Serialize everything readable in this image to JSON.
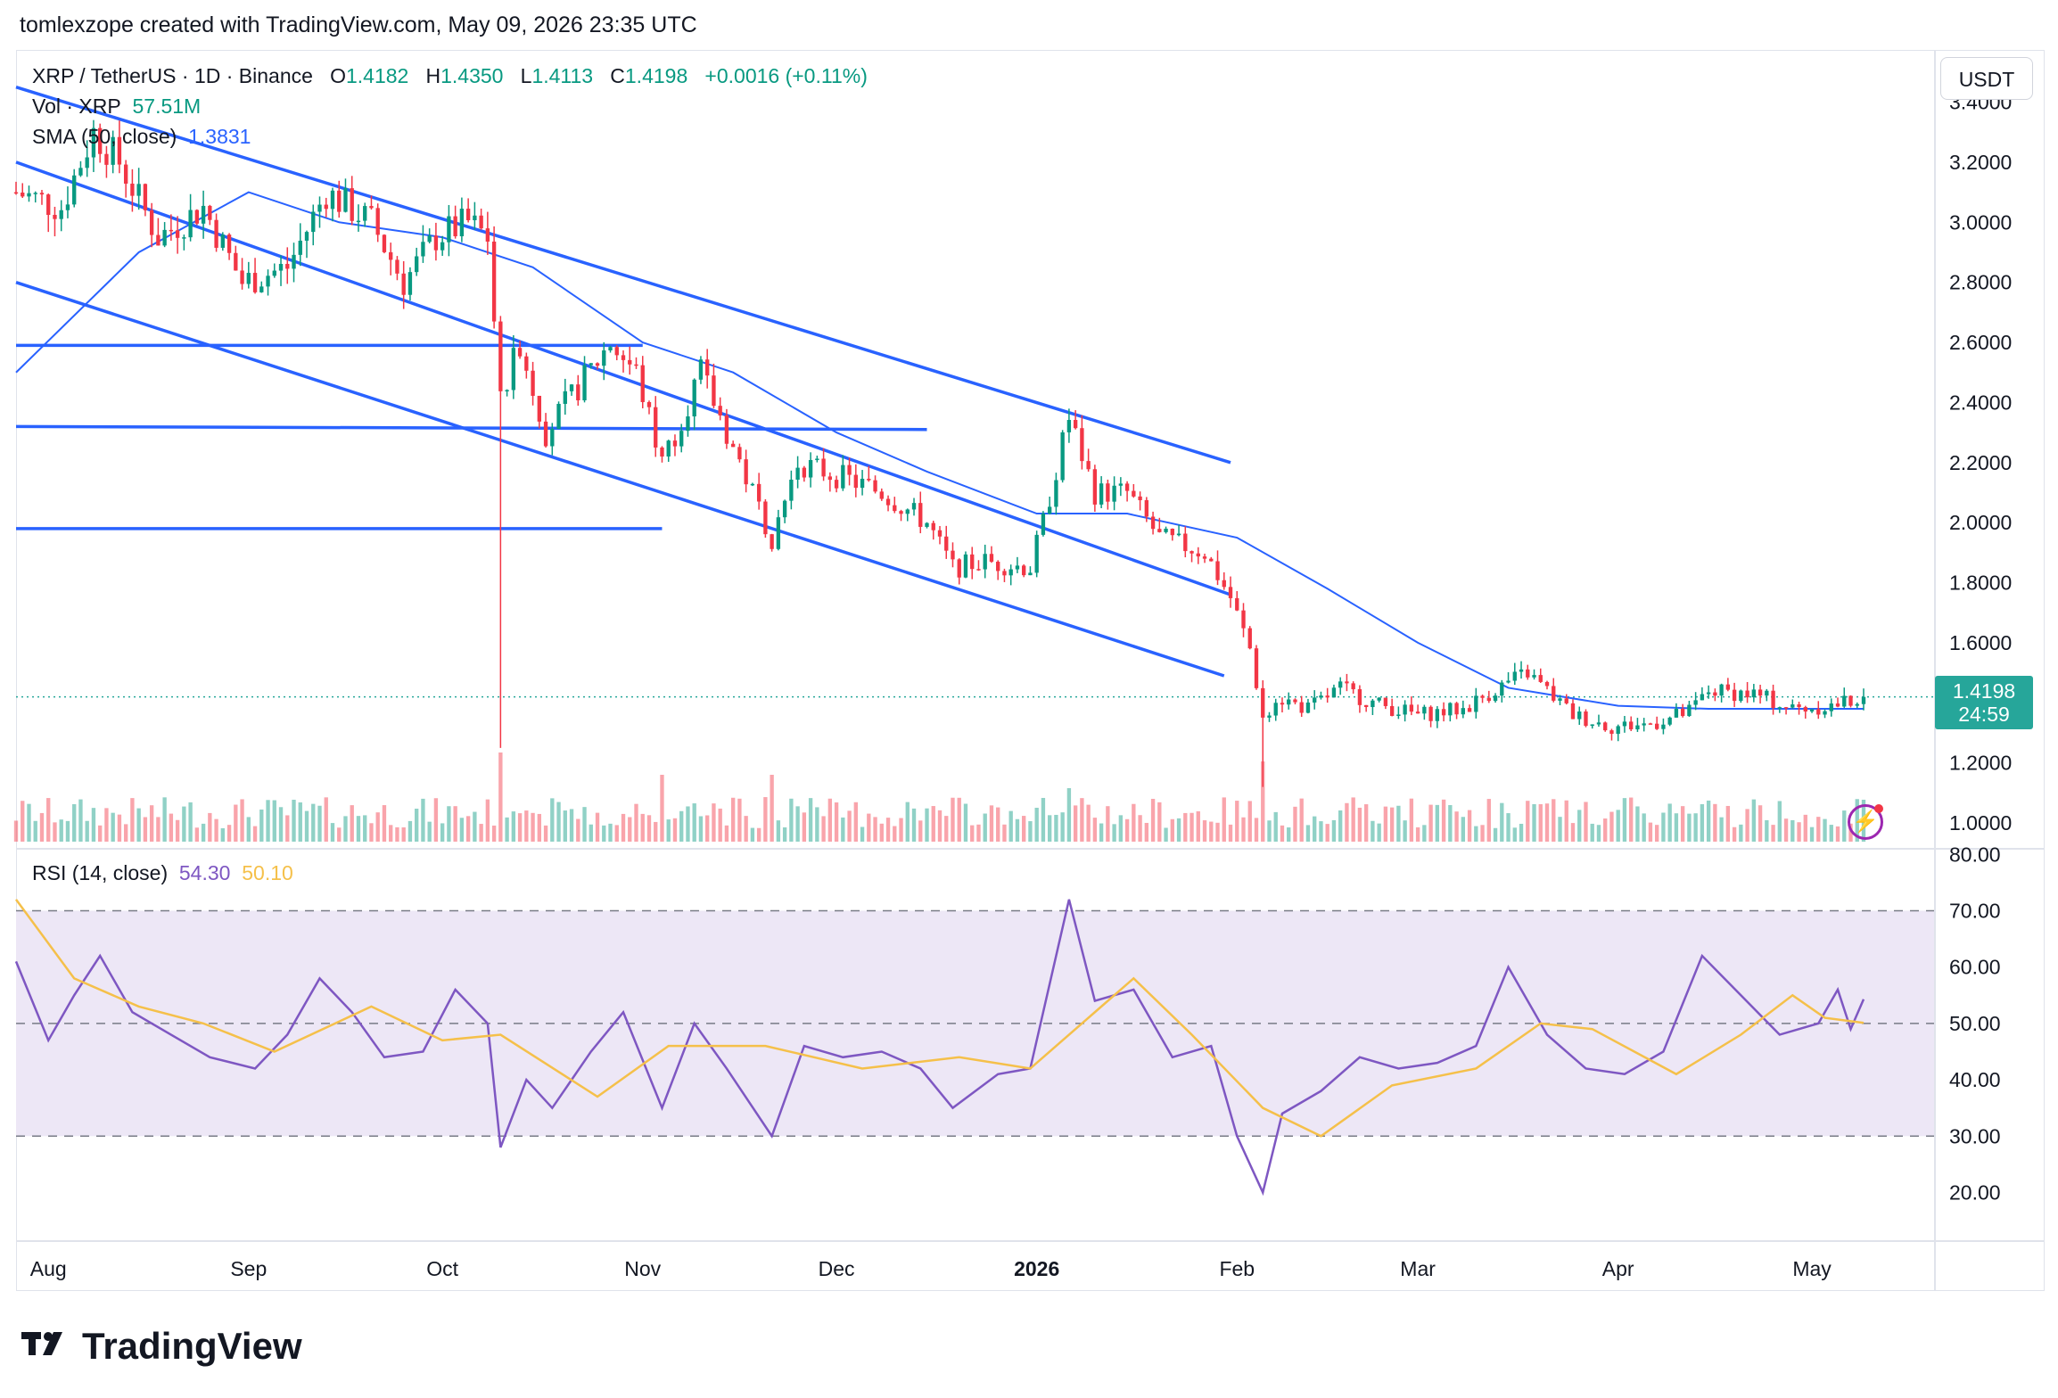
{
  "header": {
    "credit": "tomlexzope created with TradingView.com, May 09, 2026 23:35 UTC"
  },
  "legend": {
    "symbol": "XRP / TetherUS · 1D · Binance",
    "o_label": "O",
    "o_value": "1.4182",
    "h_label": "H",
    "h_value": "1.4350",
    "l_label": "L",
    "l_value": "1.4113",
    "c_label": "C",
    "c_value": "1.4198",
    "change": "+0.0016 (+0.11%)",
    "vol_label": "Vol · XRP",
    "vol_value": "57.51M",
    "sma_label": "SMA (50, close)",
    "sma_value": "1.3831",
    "rsi_label": "RSI (14, close)",
    "rsi_value": "54.30",
    "rsi_ma_value": "50.10"
  },
  "currency": "USDT",
  "last_price": {
    "price": "1.4198",
    "countdown": "24:59"
  },
  "footer": {
    "brand": "TradingView"
  },
  "colors": {
    "up": "#089981",
    "down": "#f23645",
    "sma": "#2962ff",
    "trendline": "#2962ff",
    "rsi": "#7e57c2",
    "rsi_ma": "#f5c04a",
    "rsi_band": "#ede7f6"
  },
  "icons": {
    "bolt": "lightning-icon"
  },
  "chart_data": [
    {
      "type": "candlestick",
      "title": "XRP / TetherUS · 1D · Binance",
      "y_ticks": [
        "3.4000",
        "3.2000",
        "3.0000",
        "2.8000",
        "2.6000",
        "2.4000",
        "2.2000",
        "2.0000",
        "1.8000",
        "1.6000",
        "1.4000",
        "1.2000",
        "1.0000"
      ],
      "ylim": [
        0.92,
        3.55
      ],
      "x_ticks": [
        "Aug",
        "Sep",
        "Oct",
        "Nov",
        "Dec",
        "2026",
        "Feb",
        "Mar",
        "Apr",
        "May"
      ],
      "x_start": "2025-07-27",
      "x_end": "2026-05-09",
      "grid": false,
      "close_anchors": [
        [
          "2025-07-27",
          3.1
        ],
        [
          "2025-08-03",
          3.05
        ],
        [
          "2025-08-08",
          3.3
        ],
        [
          "2025-08-12",
          3.2
        ],
        [
          "2025-08-18",
          2.95
        ],
        [
          "2025-08-25",
          3.05
        ],
        [
          "2025-08-31",
          2.8
        ],
        [
          "2025-09-07",
          2.85
        ],
        [
          "2025-09-13",
          3.1
        ],
        [
          "2025-09-20",
          3.0
        ],
        [
          "2025-09-25",
          2.8
        ],
        [
          "2025-09-30",
          2.95
        ],
        [
          "2025-10-05",
          3.0
        ],
        [
          "2025-10-08",
          2.95
        ],
        [
          "2025-10-10",
          2.4
        ],
        [
          "2025-10-13",
          2.6
        ],
        [
          "2025-10-17",
          2.3
        ],
        [
          "2025-10-22",
          2.45
        ],
        [
          "2025-10-27",
          2.6
        ],
        [
          "2025-10-31",
          2.5
        ],
        [
          "2025-11-04",
          2.2
        ],
        [
          "2025-11-07",
          2.35
        ],
        [
          "2025-11-10",
          2.5
        ],
        [
          "2025-11-14",
          2.3
        ],
        [
          "2025-11-21",
          1.95
        ],
        [
          "2025-11-25",
          2.2
        ],
        [
          "2025-12-02",
          2.15
        ],
        [
          "2025-12-08",
          2.1
        ],
        [
          "2025-12-15",
          2.0
        ],
        [
          "2025-12-19",
          1.85
        ],
        [
          "2025-12-24",
          1.87
        ],
        [
          "2025-12-31",
          1.85
        ],
        [
          "2026-01-02",
          2.0
        ],
        [
          "2026-01-06",
          2.35
        ],
        [
          "2026-01-10",
          2.1
        ],
        [
          "2026-01-15",
          2.1
        ],
        [
          "2026-01-20",
          1.95
        ],
        [
          "2026-01-27",
          1.9
        ],
        [
          "2026-01-31",
          1.75
        ],
        [
          "2026-02-03",
          1.58
        ],
        [
          "2026-02-05",
          1.35
        ],
        [
          "2026-02-07",
          1.42
        ],
        [
          "2026-02-12",
          1.38
        ],
        [
          "2026-02-17",
          1.45
        ],
        [
          "2026-02-22",
          1.4
        ],
        [
          "2026-03-01",
          1.36
        ],
        [
          "2026-03-08",
          1.38
        ],
        [
          "2026-03-15",
          1.47
        ],
        [
          "2026-03-18",
          1.5
        ],
        [
          "2026-03-25",
          1.36
        ],
        [
          "2026-03-31",
          1.32
        ],
        [
          "2026-04-06",
          1.33
        ],
        [
          "2026-04-12",
          1.37
        ],
        [
          "2026-04-15",
          1.44
        ],
        [
          "2026-04-22",
          1.43
        ],
        [
          "2026-04-28",
          1.38
        ],
        [
          "2026-05-04",
          1.39
        ],
        [
          "2026-05-09",
          1.42
        ]
      ]
    },
    {
      "type": "line",
      "title": "SMA (50, close)",
      "series": [
        {
          "name": "SMA (50, close)",
          "points": [
            [
              "2025-07-27",
              2.5
            ],
            [
              "2025-08-15",
              2.9
            ],
            [
              "2025-09-01",
              3.1
            ],
            [
              "2025-09-15",
              3.0
            ],
            [
              "2025-10-01",
              2.95
            ],
            [
              "2025-10-15",
              2.85
            ],
            [
              "2025-11-01",
              2.6
            ],
            [
              "2025-11-15",
              2.5
            ],
            [
              "2025-12-01",
              2.3
            ],
            [
              "2025-12-15",
              2.17
            ],
            [
              "2026-01-01",
              2.03
            ],
            [
              "2026-01-15",
              2.03
            ],
            [
              "2026-02-01",
              1.95
            ],
            [
              "2026-02-15",
              1.78
            ],
            [
              "2026-03-01",
              1.6
            ],
            [
              "2026-03-15",
              1.45
            ],
            [
              "2026-04-01",
              1.39
            ],
            [
              "2026-04-15",
              1.38
            ],
            [
              "2026-05-09",
              1.38
            ]
          ]
        }
      ]
    },
    {
      "type": "bar",
      "title": "Vol · XRP",
      "series": [
        {
          "name": "Vol · XRP",
          "values_note": "relative daily volume"
        }
      ],
      "spikes": [
        [
          "2025-10-10",
          1.0
        ],
        [
          "2026-02-05",
          0.9
        ],
        [
          "2025-11-04",
          0.75
        ],
        [
          "2026-01-06",
          0.6
        ],
        [
          "2025-11-21",
          0.75
        ]
      ]
    },
    {
      "type": "line",
      "title": "RSI (14, close)",
      "y_ticks": [
        "80.00",
        "70.00",
        "60.00",
        "50.00",
        "40.00",
        "30.00",
        "20.00"
      ],
      "ylim": [
        12,
        81
      ],
      "band": [
        30,
        70
      ],
      "series": [
        {
          "name": "RSI (14, close)",
          "points": [
            [
              "2025-07-27",
              61
            ],
            [
              "2025-08-01",
              47
            ],
            [
              "2025-08-05",
              55
            ],
            [
              "2025-08-09",
              62
            ],
            [
              "2025-08-14",
              52
            ],
            [
              "2025-08-20",
              48
            ],
            [
              "2025-08-26",
              44
            ],
            [
              "2025-09-02",
              42
            ],
            [
              "2025-09-07",
              48
            ],
            [
              "2025-09-12",
              58
            ],
            [
              "2025-09-17",
              52
            ],
            [
              "2025-09-22",
              44
            ],
            [
              "2025-09-28",
              45
            ],
            [
              "2025-10-03",
              56
            ],
            [
              "2025-10-08",
              50
            ],
            [
              "2025-10-10",
              28
            ],
            [
              "2025-10-14",
              40
            ],
            [
              "2025-10-18",
              35
            ],
            [
              "2025-10-24",
              45
            ],
            [
              "2025-10-29",
              52
            ],
            [
              "2025-11-04",
              35
            ],
            [
              "2025-11-09",
              50
            ],
            [
              "2025-11-14",
              42
            ],
            [
              "2025-11-21",
              30
            ],
            [
              "2025-11-26",
              46
            ],
            [
              "2025-12-02",
              44
            ],
            [
              "2025-12-08",
              45
            ],
            [
              "2025-12-14",
              42
            ],
            [
              "2025-12-19",
              35
            ],
            [
              "2025-12-26",
              41
            ],
            [
              "2025-12-31",
              42
            ],
            [
              "2026-01-04",
              62
            ],
            [
              "2026-01-06",
              72
            ],
            [
              "2026-01-10",
              54
            ],
            [
              "2026-01-16",
              56
            ],
            [
              "2026-01-22",
              44
            ],
            [
              "2026-01-28",
              46
            ],
            [
              "2026-02-01",
              30
            ],
            [
              "2026-02-05",
              20
            ],
            [
              "2026-02-08",
              34
            ],
            [
              "2026-02-14",
              38
            ],
            [
              "2026-02-20",
              44
            ],
            [
              "2026-02-26",
              42
            ],
            [
              "2026-03-04",
              43
            ],
            [
              "2026-03-10",
              46
            ],
            [
              "2026-03-15",
              60
            ],
            [
              "2026-03-21",
              48
            ],
            [
              "2026-03-27",
              42
            ],
            [
              "2026-04-02",
              41
            ],
            [
              "2026-04-08",
              45
            ],
            [
              "2026-04-14",
              62
            ],
            [
              "2026-04-20",
              55
            ],
            [
              "2026-04-26",
              48
            ],
            [
              "2026-05-02",
              50
            ],
            [
              "2026-05-05",
              56
            ],
            [
              "2026-05-07",
              49
            ],
            [
              "2026-05-09",
              54.3
            ]
          ]
        },
        {
          "name": "RSI-based MA",
          "points": [
            [
              "2025-07-27",
              72
            ],
            [
              "2025-08-05",
              58
            ],
            [
              "2025-08-15",
              53
            ],
            [
              "2025-08-25",
              50
            ],
            [
              "2025-09-05",
              45
            ],
            [
              "2025-09-20",
              53
            ],
            [
              "2025-10-01",
              47
            ],
            [
              "2025-10-10",
              48
            ],
            [
              "2025-10-25",
              37
            ],
            [
              "2025-11-05",
              46
            ],
            [
              "2025-11-20",
              46
            ],
            [
              "2025-12-05",
              42
            ],
            [
              "2025-12-20",
              44
            ],
            [
              "2025-12-31",
              42
            ],
            [
              "2026-01-10",
              52
            ],
            [
              "2026-01-16",
              58
            ],
            [
              "2026-01-25",
              48
            ],
            [
              "2026-02-05",
              35
            ],
            [
              "2026-02-14",
              30
            ],
            [
              "2026-02-25",
              39
            ],
            [
              "2026-03-10",
              42
            ],
            [
              "2026-03-20",
              50
            ],
            [
              "2026-03-28",
              49
            ],
            [
              "2026-04-10",
              41
            ],
            [
              "2026-04-20",
              48
            ],
            [
              "2026-04-28",
              55
            ],
            [
              "2026-05-03",
              51
            ],
            [
              "2026-05-09",
              50.1
            ]
          ]
        }
      ]
    }
  ]
}
